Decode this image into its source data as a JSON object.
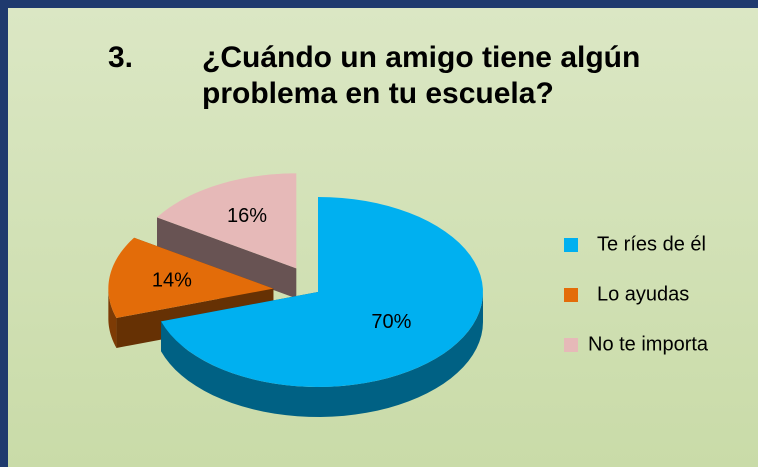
{
  "chart_data": {
    "type": "pie",
    "title": "3.\t¿Cuándo un amigo tiene algún problema en tu escuela?",
    "categories": [
      "Te ríes de él",
      "Lo ayudas",
      "No te importa"
    ],
    "values": [
      70,
      14,
      16
    ],
    "value_labels": [
      "70%",
      "14%",
      "16%"
    ],
    "colors": [
      "#00b0f0",
      "#e36c09",
      "#e6b9b8"
    ],
    "legend": "right"
  }
}
